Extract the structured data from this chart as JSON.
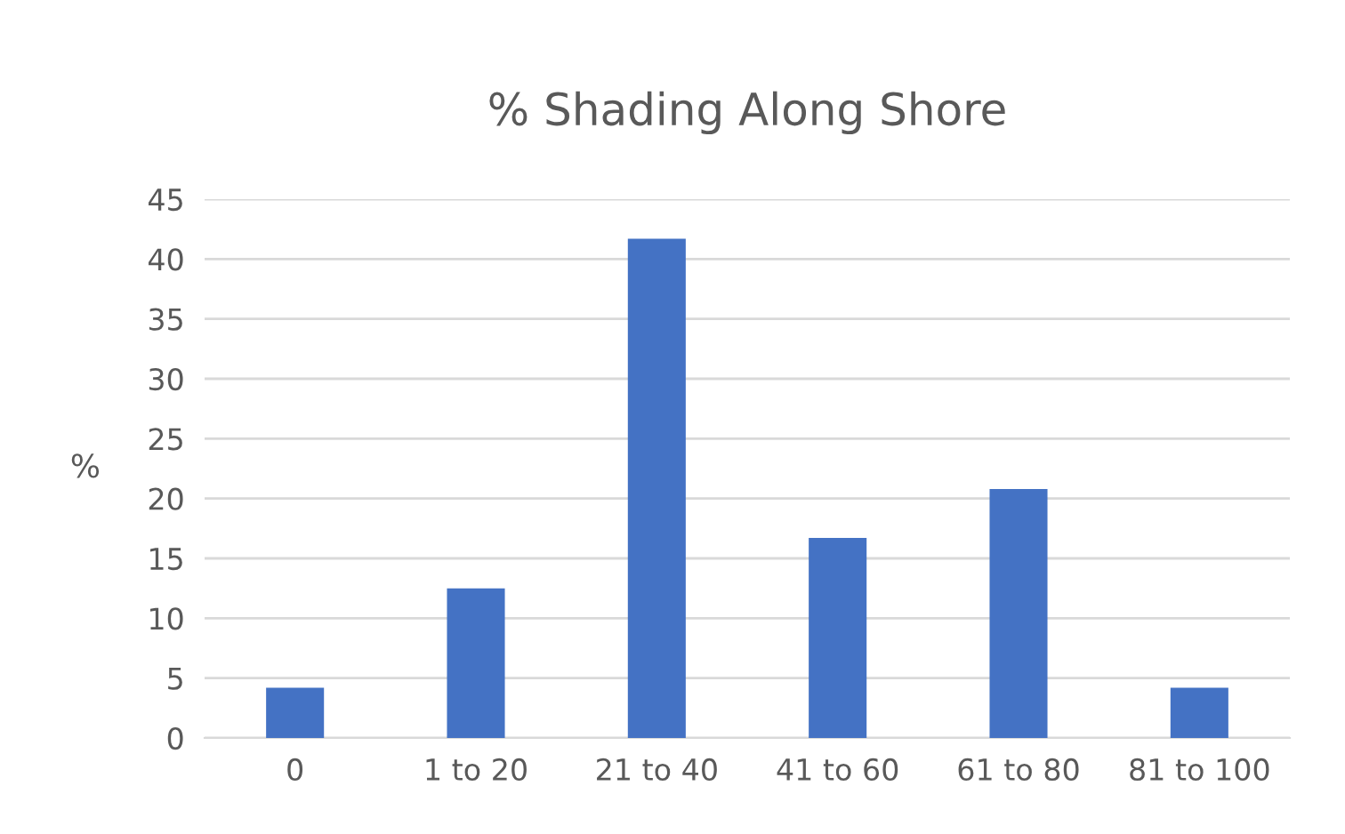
{
  "chart_data": {
    "type": "bar",
    "title": "% Shading Along Shore",
    "ylabel": "%",
    "categories": [
      "0",
      "1 to 20",
      "21 to 40",
      "41 to 60",
      "61 to 80",
      "81 to 100"
    ],
    "values": [
      4.2,
      12.5,
      41.7,
      16.7,
      20.8,
      4.2
    ],
    "color": "#4472c4",
    "ylim": [
      0,
      45
    ],
    "yticks": [
      0,
      5,
      10,
      15,
      20,
      25,
      30,
      35,
      40,
      45
    ],
    "grid": "y",
    "legend": false
  }
}
